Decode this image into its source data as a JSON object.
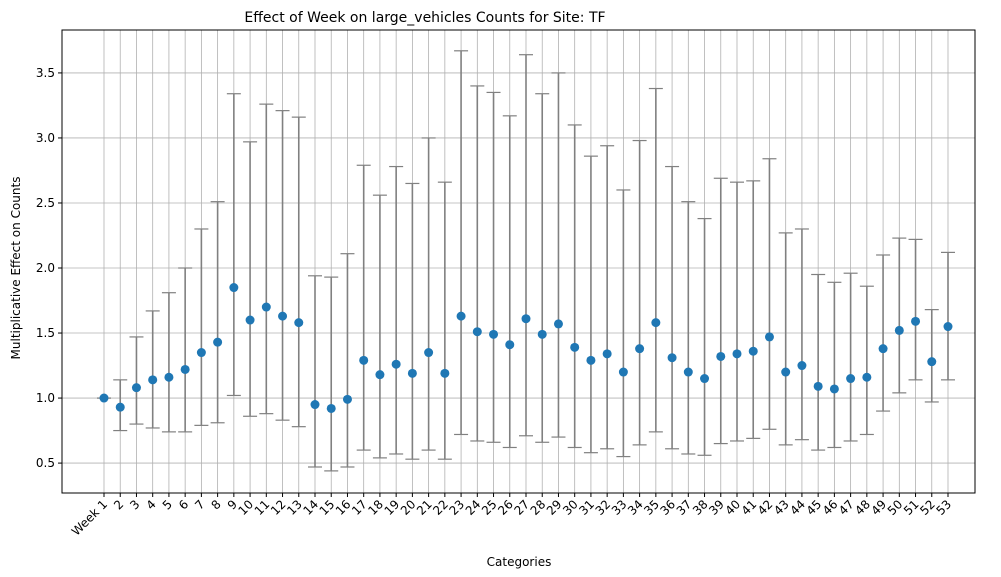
{
  "chart_data": {
    "type": "scatter",
    "title": "Effect of Week on large_vehicles Counts for Site: TF",
    "xlabel": "Categories",
    "ylabel": "Multiplicative Effect on Counts",
    "ylim": [
      0.27,
      3.83
    ],
    "yticks": [
      0.5,
      1.0,
      1.5,
      2.0,
      2.5,
      3.0,
      3.5
    ],
    "ytick_labels": [
      "0.5",
      "1.0",
      "1.5",
      "2.0",
      "2.5",
      "3.0",
      "3.5"
    ],
    "grid": true,
    "categories": [
      "Week 1",
      "2",
      "3",
      "4",
      "5",
      "6",
      "7",
      "8",
      "9",
      "10",
      "11",
      "12",
      "13",
      "14",
      "15",
      "16",
      "17",
      "18",
      "19",
      "20",
      "21",
      "22",
      "23",
      "24",
      "25",
      "26",
      "27",
      "28",
      "29",
      "30",
      "31",
      "32",
      "33",
      "34",
      "35",
      "36",
      "37",
      "38",
      "39",
      "40",
      "41",
      "42",
      "43",
      "44",
      "45",
      "46",
      "47",
      "48",
      "49",
      "50",
      "51",
      "52",
      "53"
    ],
    "values": [
      1.0,
      0.93,
      1.08,
      1.14,
      1.16,
      1.22,
      1.35,
      1.43,
      1.85,
      1.6,
      1.7,
      1.63,
      1.58,
      0.95,
      0.92,
      0.99,
      1.29,
      1.18,
      1.26,
      1.19,
      1.35,
      1.19,
      1.63,
      1.51,
      1.49,
      1.41,
      1.61,
      1.49,
      1.57,
      1.39,
      1.29,
      1.34,
      1.2,
      1.38,
      1.58,
      1.31,
      1.2,
      1.15,
      1.32,
      1.34,
      1.36,
      1.47,
      1.2,
      1.25,
      1.09,
      1.07,
      1.15,
      1.16,
      1.38,
      1.52,
      1.59,
      1.28,
      1.55
    ],
    "lower": [
      1.0,
      0.75,
      0.8,
      0.77,
      0.74,
      0.74,
      0.79,
      0.81,
      1.02,
      0.86,
      0.88,
      0.83,
      0.78,
      0.47,
      0.44,
      0.47,
      0.6,
      0.54,
      0.57,
      0.53,
      0.6,
      0.53,
      0.72,
      0.67,
      0.66,
      0.62,
      0.71,
      0.66,
      0.7,
      0.62,
      0.58,
      0.61,
      0.55,
      0.64,
      0.74,
      0.61,
      0.57,
      0.56,
      0.65,
      0.67,
      0.69,
      0.76,
      0.64,
      0.68,
      0.6,
      0.62,
      0.67,
      0.72,
      0.9,
      1.04,
      1.14,
      0.97,
      1.14
    ],
    "upper": [
      1.0,
      1.14,
      1.47,
      1.67,
      1.81,
      2.0,
      2.3,
      2.51,
      3.34,
      2.97,
      3.26,
      3.21,
      3.16,
      1.94,
      1.93,
      2.11,
      2.79,
      2.56,
      2.78,
      2.65,
      3.0,
      2.66,
      3.67,
      3.4,
      3.35,
      3.17,
      3.64,
      3.34,
      3.5,
      3.1,
      2.86,
      2.94,
      2.6,
      2.98,
      3.38,
      2.78,
      2.51,
      2.38,
      2.69,
      2.66,
      2.67,
      2.84,
      2.27,
      2.3,
      1.95,
      1.89,
      1.96,
      1.86,
      2.1,
      2.23,
      2.22,
      1.68,
      2.12
    ],
    "colors": {
      "marker": "#1f77b4",
      "errorbar": "#808080",
      "grid": "#b0b0b0",
      "axis": "#000000"
    }
  }
}
